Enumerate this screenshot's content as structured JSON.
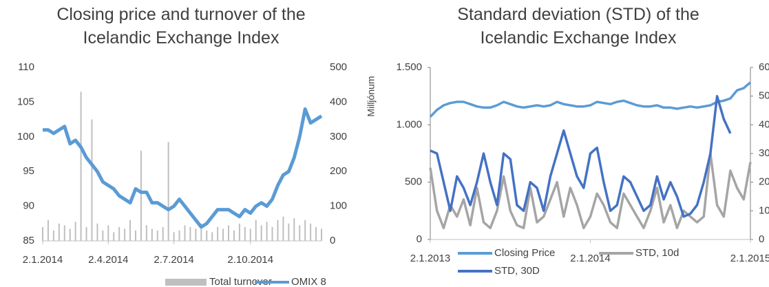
{
  "chart_data": [
    {
      "type": "combo",
      "title": "Closing price and turnover of the Icelandic Exchange Index",
      "y2_label": "Milljónum",
      "categories": [
        "2.1.2014",
        null,
        null,
        null,
        null,
        null,
        null,
        null,
        null,
        null,
        null,
        null,
        "2.4.2014",
        null,
        null,
        null,
        null,
        null,
        null,
        null,
        null,
        null,
        null,
        null,
        "2.7.2014",
        null,
        null,
        null,
        null,
        null,
        null,
        null,
        null,
        null,
        null,
        null,
        null,
        null,
        "2.10.2014",
        null,
        null,
        null,
        null,
        null,
        null,
        null,
        null,
        null,
        null,
        null,
        null,
        null
      ],
      "series": [
        {
          "name": "Total turnover",
          "type": "bar",
          "axis": "y2",
          "color": "#bfbfbf",
          "values": [
            40,
            60,
            30,
            50,
            45,
            35,
            55,
            430,
            40,
            350,
            50,
            30,
            45,
            25,
            40,
            35,
            60,
            30,
            260,
            45,
            35,
            30,
            40,
            285,
            25,
            30,
            45,
            40,
            35,
            50,
            30,
            25,
            40,
            35,
            45,
            30,
            50,
            40,
            35,
            60,
            45,
            55,
            40,
            60,
            70,
            50,
            65,
            45,
            60,
            50,
            40,
            35
          ]
        },
        {
          "name": "OMIX 8",
          "type": "line",
          "color": "#5b9bd5",
          "values": [
            101,
            101,
            100.5,
            101,
            101.5,
            99,
            99.5,
            98.5,
            97,
            96,
            95,
            93.5,
            93,
            92.5,
            91.5,
            91,
            90.5,
            92.5,
            92,
            92,
            90.5,
            90.5,
            90,
            89.5,
            90,
            91,
            90,
            89,
            88,
            87,
            87.5,
            88.5,
            89.5,
            89.5,
            89.5,
            89,
            88.5,
            89.5,
            89,
            90,
            90.5,
            90,
            91,
            93,
            94.5,
            95,
            97,
            100,
            104,
            102,
            102.5,
            103
          ]
        }
      ],
      "ylim": [
        85,
        110
      ],
      "yticks": [
        85,
        90,
        95,
        100,
        105,
        110
      ],
      "y2lim": [
        0,
        500
      ],
      "y2ticks": [
        0,
        100,
        200,
        300,
        400,
        500
      ],
      "grid": false,
      "legend": "bottom"
    },
    {
      "type": "line",
      "title": "Standard deviation (STD) of the Icelandic Exchange Index",
      "categories": [
        "2.1.2013",
        null,
        null,
        null,
        null,
        null,
        null,
        null,
        null,
        null,
        null,
        null,
        null,
        null,
        null,
        null,
        null,
        null,
        null,
        null,
        null,
        null,
        null,
        null,
        "2.1.2014",
        null,
        null,
        null,
        null,
        null,
        null,
        null,
        null,
        null,
        null,
        null,
        null,
        null,
        null,
        null,
        null,
        null,
        null,
        null,
        null,
        null,
        null,
        null,
        "2.1.2015"
      ],
      "series": [
        {
          "name": "Closing Price",
          "type": "line",
          "color": "#5b9bd5",
          "values": [
            1070,
            1130,
            1170,
            1190,
            1200,
            1200,
            1180,
            1160,
            1150,
            1150,
            1170,
            1200,
            1180,
            1160,
            1150,
            1160,
            1170,
            1160,
            1170,
            1200,
            1180,
            1170,
            1160,
            1160,
            1170,
            1200,
            1190,
            1180,
            1200,
            1210,
            1190,
            1170,
            1160,
            1160,
            1170,
            1150,
            1150,
            1140,
            1150,
            1160,
            1150,
            1160,
            1170,
            1200,
            1210,
            1230,
            1300,
            1320,
            1370
          ]
        },
        {
          "name": "STD, 10d",
          "type": "line",
          "axis": "y2",
          "color": "#a5a5a5",
          "values": [
            25,
            10,
            4,
            12,
            8,
            14,
            5,
            18,
            6,
            4,
            10,
            22,
            10,
            5,
            4,
            18,
            6,
            8,
            14,
            20,
            8,
            18,
            12,
            4,
            8,
            16,
            12,
            6,
            4,
            16,
            12,
            8,
            4,
            10,
            18,
            6,
            12,
            4,
            10,
            8,
            6,
            8,
            30,
            12,
            8,
            24,
            18,
            14,
            27
          ]
        },
        {
          "name": "STD, 30D",
          "type": "line",
          "axis": "y2",
          "color": "#4472c4",
          "values": [
            31,
            30,
            20,
            10,
            22,
            18,
            12,
            20,
            30,
            20,
            12,
            30,
            28,
            12,
            10,
            20,
            18,
            10,
            22,
            30,
            38,
            30,
            22,
            18,
            30,
            32,
            20,
            10,
            12,
            22,
            20,
            15,
            10,
            12,
            22,
            14,
            20,
            15,
            8,
            9,
            12,
            20,
            30,
            50,
            42,
            37,
            null,
            null,
            null
          ]
        }
      ],
      "ylim": [
        0,
        1500
      ],
      "yticks": [
        0,
        500,
        {
          "value": 1000,
          "label": "1.000"
        },
        {
          "value": 1500,
          "label": "1.500"
        }
      ],
      "y2lim": [
        0,
        60
      ],
      "y2ticks": [
        0,
        10,
        20,
        30,
        40,
        50,
        60
      ],
      "grid": false,
      "legend": "bottom"
    }
  ]
}
